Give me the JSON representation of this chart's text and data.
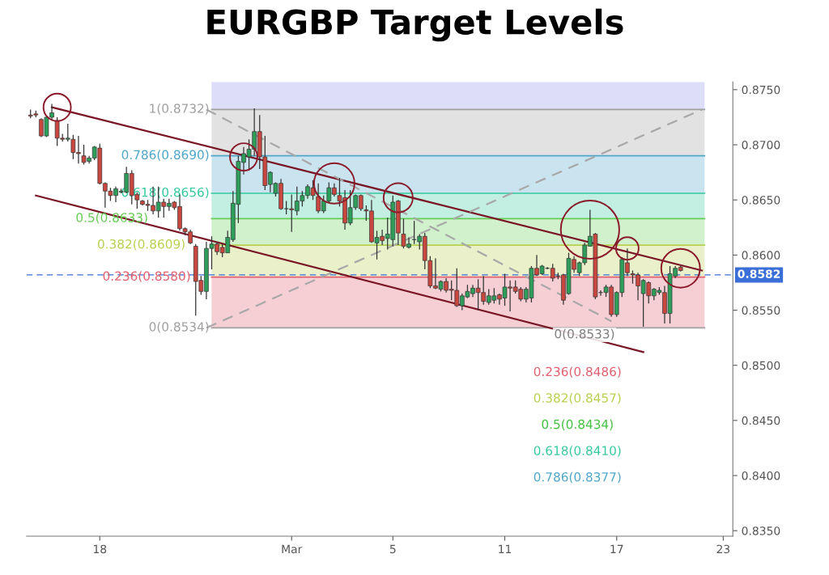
{
  "chart_data": {
    "type": "candlestick",
    "title": "EURGBP Target Levels",
    "categories": [
      null,
      null,
      null,
      null,
      null,
      null,
      null,
      null,
      null,
      null,
      null,
      null,
      null,
      "18",
      null,
      null,
      null,
      null,
      null,
      null,
      null,
      null,
      null,
      null,
      null,
      null,
      null,
      null,
      null,
      null,
      null,
      null,
      null,
      null,
      null,
      null,
      null,
      null,
      null,
      null,
      null,
      null,
      null,
      null,
      null,
      null,
      null,
      null,
      null,
      "Mar",
      null,
      null,
      null,
      null,
      null,
      null,
      null,
      null,
      null,
      null,
      null,
      null,
      null,
      null,
      null,
      null,
      null,
      null,
      "5",
      null,
      null,
      null,
      null,
      null,
      null,
      null,
      null,
      null,
      null,
      null,
      null,
      null,
      null,
      null,
      null,
      null,
      null,
      null,
      null,
      "11",
      null,
      null,
      null,
      null,
      null,
      null,
      null,
      null,
      null,
      null,
      null,
      null,
      null,
      null,
      null,
      null,
      null,
      null,
      null,
      null,
      "17",
      null,
      null,
      null,
      null,
      null,
      null,
      null,
      null,
      null,
      null,
      null,
      null,
      null,
      null,
      null,
      null,
      null,
      null,
      null,
      "23",
      null
    ],
    "ohlc": [
      [
        0.8727,
        0.8732,
        0.8724,
        0.8726
      ],
      [
        0.8728,
        0.8731,
        0.8725,
        0.8727
      ],
      [
        0.8723,
        0.8724,
        0.8707,
        0.8708
      ],
      [
        0.8708,
        0.8726,
        0.8707,
        0.8725
      ],
      [
        0.8725,
        0.8737,
        0.8722,
        0.8729
      ],
      [
        0.8722,
        0.8725,
        0.8699,
        0.8706
      ],
      [
        0.8706,
        0.871,
        0.8703,
        0.8705
      ],
      [
        0.8705,
        0.8719,
        0.8703,
        0.8706
      ],
      [
        0.8705,
        0.8709,
        0.8687,
        0.8693
      ],
      [
        0.8693,
        0.8708,
        0.8683,
        0.8692
      ],
      [
        0.869,
        0.87,
        0.8682,
        0.8684
      ],
      [
        0.8685,
        0.869,
        0.8683,
        0.8688
      ],
      [
        0.8688,
        0.8699,
        0.8686,
        0.8698
      ],
      [
        0.8697,
        0.8701,
        0.8664,
        0.8665
      ],
      [
        0.8665,
        0.8666,
        0.8643,
        0.8658
      ],
      [
        0.8658,
        0.8661,
        0.8649,
        0.8654
      ],
      [
        0.8654,
        0.8662,
        0.8648,
        0.866
      ],
      [
        0.8657,
        0.866,
        0.8656,
        0.8658
      ],
      [
        0.8657,
        0.868,
        0.8656,
        0.8674
      ],
      [
        0.8674,
        0.8677,
        0.8646,
        0.8654
      ],
      [
        0.8655,
        0.8657,
        0.8642,
        0.865
      ],
      [
        0.8649,
        0.865,
        0.8645,
        0.8646
      ],
      [
        0.8646,
        0.865,
        0.864,
        0.8645
      ],
      [
        0.8645,
        0.8662,
        0.8637,
        0.864
      ],
      [
        0.864,
        0.8662,
        0.8634,
        0.8648
      ],
      [
        0.8648,
        0.8651,
        0.8634,
        0.8644
      ],
      [
        0.8644,
        0.8651,
        0.864,
        0.8647
      ],
      [
        0.8648,
        0.8649,
        0.8641,
        0.8643
      ],
      [
        0.8644,
        0.8655,
        0.8622,
        0.8624
      ],
      [
        0.8624,
        0.8625,
        0.8618,
        0.8621
      ],
      [
        0.8621,
        0.8623,
        0.861,
        0.8611
      ],
      [
        0.8608,
        0.861,
        0.8545,
        0.8576
      ],
      [
        0.8577,
        0.8581,
        0.8564,
        0.8567
      ],
      [
        0.8567,
        0.8612,
        0.856,
        0.8606
      ],
      [
        0.8606,
        0.8617,
        0.8587,
        0.861
      ],
      [
        0.861,
        0.8612,
        0.86,
        0.8603
      ],
      [
        0.8607,
        0.861,
        0.8598,
        0.8602
      ],
      [
        0.8602,
        0.8622,
        0.8602,
        0.8616
      ],
      [
        0.8614,
        0.8658,
        0.8612,
        0.8647
      ],
      [
        0.8646,
        0.869,
        0.8629,
        0.8685
      ],
      [
        0.8684,
        0.8698,
        0.8673,
        0.8692
      ],
      [
        0.8689,
        0.8705,
        0.8677,
        0.8696
      ],
      [
        0.8696,
        0.8733,
        0.869,
        0.8712
      ],
      [
        0.8712,
        0.8727,
        0.8678,
        0.8689
      ],
      [
        0.8689,
        0.8708,
        0.8659,
        0.8663
      ],
      [
        0.8664,
        0.8676,
        0.8657,
        0.8675
      ],
      [
        0.8656,
        0.8666,
        0.8653,
        0.8665
      ],
      [
        0.8665,
        0.8669,
        0.8641,
        0.8642
      ],
      [
        0.8642,
        0.8649,
        0.8637,
        0.8642
      ],
      [
        0.8642,
        0.8655,
        0.8621,
        0.8641
      ],
      [
        0.864,
        0.8662,
        0.8636,
        0.8649
      ],
      [
        0.8649,
        0.8658,
        0.8644,
        0.8654
      ],
      [
        0.8654,
        0.8664,
        0.8651,
        0.8662
      ],
      [
        0.8661,
        0.8668,
        0.865,
        0.8654
      ],
      [
        0.8653,
        0.8665,
        0.8638,
        0.864
      ],
      [
        0.864,
        0.8654,
        0.8638,
        0.8649
      ],
      [
        0.8649,
        0.8666,
        0.8648,
        0.8661
      ],
      [
        0.8661,
        0.8665,
        0.8653,
        0.8655
      ],
      [
        0.8654,
        0.867,
        0.8644,
        0.8649
      ],
      [
        0.8652,
        0.8659,
        0.8623,
        0.8629
      ],
      [
        0.8629,
        0.8659,
        0.8627,
        0.8643
      ],
      [
        0.8643,
        0.8655,
        0.8641,
        0.8654
      ],
      [
        0.8654,
        0.8655,
        0.864,
        0.8642
      ],
      [
        0.8641,
        0.8645,
        0.8631,
        0.864
      ],
      [
        0.864,
        0.865,
        0.8611,
        0.8612
      ],
      [
        0.8611,
        0.8622,
        0.8596,
        0.8616
      ],
      [
        0.8617,
        0.8623,
        0.8609,
        0.8613
      ],
      [
        0.8615,
        0.8634,
        0.8605,
        0.8619
      ],
      [
        0.8614,
        0.8654,
        0.8608,
        0.8648
      ],
      [
        0.8649,
        0.865,
        0.8609,
        0.862
      ],
      [
        0.8619,
        0.8633,
        0.8606,
        0.8608
      ],
      [
        0.8607,
        0.8616,
        0.8606,
        0.861
      ],
      [
        0.8614,
        0.8631,
        0.861,
        0.8614
      ],
      [
        0.8612,
        0.8619,
        0.8605,
        0.8617
      ],
      [
        0.8617,
        0.862,
        0.8587,
        0.8595
      ],
      [
        0.8595,
        0.8599,
        0.857,
        0.8572
      ],
      [
        0.8572,
        0.8597,
        0.8569,
        0.857
      ],
      [
        0.8569,
        0.8577,
        0.8567,
        0.8576
      ],
      [
        0.8576,
        0.8579,
        0.8566,
        0.8568
      ],
      [
        0.8569,
        0.8577,
        0.8559,
        0.8568
      ],
      [
        0.8568,
        0.8588,
        0.8553,
        0.8554
      ],
      [
        0.8554,
        0.8565,
        0.855,
        0.8563
      ],
      [
        0.8562,
        0.8573,
        0.8561,
        0.8567
      ],
      [
        0.8565,
        0.8573,
        0.8562,
        0.857
      ],
      [
        0.857,
        0.8578,
        0.855,
        0.8566
      ],
      [
        0.8566,
        0.8581,
        0.8555,
        0.8558
      ],
      [
        0.8557,
        0.8569,
        0.8555,
        0.8563
      ],
      [
        0.8559,
        0.857,
        0.8556,
        0.8563
      ],
      [
        0.8564,
        0.8565,
        0.8555,
        0.856
      ],
      [
        0.8561,
        0.8583,
        0.8554,
        0.8571
      ],
      [
        0.8571,
        0.8577,
        0.8549,
        0.857
      ],
      [
        0.8571,
        0.8577,
        0.8565,
        0.8567
      ],
      [
        0.8569,
        0.8571,
        0.8558,
        0.856
      ],
      [
        0.856,
        0.8571,
        0.8557,
        0.8569
      ],
      [
        0.8561,
        0.859,
        0.8557,
        0.8588
      ],
      [
        0.8588,
        0.86,
        0.8581,
        0.8582
      ],
      [
        0.8583,
        0.8591,
        0.8582,
        0.859
      ],
      [
        0.8588,
        0.8589,
        0.8587,
        0.8588
      ],
      [
        0.8588,
        0.8592,
        0.8576,
        0.8579
      ],
      [
        0.8581,
        0.8584,
        0.8578,
        0.8581
      ],
      [
        0.8582,
        0.8583,
        0.8555,
        0.8559
      ],
      [
        0.8565,
        0.8602,
        0.8564,
        0.8597
      ],
      [
        0.8596,
        0.8599,
        0.8584,
        0.8587
      ],
      [
        0.8584,
        0.8594,
        0.8581,
        0.8593
      ],
      [
        0.8593,
        0.8611,
        0.8591,
        0.8609
      ],
      [
        0.8608,
        0.8641,
        0.8608,
        0.8617
      ],
      [
        0.8619,
        0.862,
        0.856,
        0.8562
      ],
      [
        0.8566,
        0.8568,
        0.8563,
        0.8566
      ],
      [
        0.8566,
        0.8573,
        0.8562,
        0.8571
      ],
      [
        0.8571,
        0.8573,
        0.8544,
        0.8546
      ],
      [
        0.8546,
        0.8567,
        0.8544,
        0.8566
      ],
      [
        0.8566,
        0.8598,
        0.8562,
        0.8596
      ],
      [
        0.8593,
        0.8606,
        0.8581,
        0.8584
      ],
      [
        0.8583,
        0.8586,
        0.8574,
        0.8582
      ],
      [
        0.8582,
        0.8584,
        0.8559,
        0.8572
      ],
      [
        0.8565,
        0.8578,
        0.8535,
        0.8577
      ],
      [
        0.8575,
        0.8576,
        0.8556,
        0.8563
      ],
      [
        0.8563,
        0.857,
        0.8559,
        0.8569
      ],
      [
        0.8566,
        0.8571,
        0.8564,
        0.8568
      ],
      [
        0.8566,
        0.8572,
        0.8538,
        0.8547
      ],
      [
        0.8547,
        0.859,
        0.8538,
        0.8583
      ],
      [
        0.8581,
        0.859,
        0.8579,
        0.8588
      ],
      [
        0.8589,
        0.859,
        0.8585,
        0.8586
      ],
      null,
      null,
      null,
      null,
      null,
      null,
      null,
      null,
      null
    ],
    "series": [
      {
        "type": "line",
        "color": "#7a1526",
        "values": [
          null,
          null,
          null,
          null,
          0.8734,
          null,
          null,
          null,
          null,
          null,
          null,
          null,
          null,
          null,
          null,
          null,
          null,
          null,
          null,
          null,
          null,
          null,
          null,
          null,
          null,
          null,
          null,
          null,
          null,
          null,
          null,
          null,
          null,
          null,
          null,
          null,
          null,
          null,
          null,
          null,
          null,
          null,
          null,
          null,
          null,
          null,
          null,
          null,
          null,
          null,
          null,
          null,
          null,
          null,
          null,
          null,
          null,
          null,
          null,
          null,
          null,
          null,
          null,
          null,
          null,
          null,
          null,
          null,
          null,
          null,
          null,
          null,
          null,
          null,
          null,
          null,
          null,
          null,
          null,
          null,
          null,
          null,
          null,
          null,
          null,
          null,
          null,
          null,
          null,
          null,
          null,
          null,
          null,
          null,
          null,
          null,
          null,
          null,
          null,
          null,
          null,
          null,
          null,
          null,
          null,
          null,
          null,
          null,
          null,
          null,
          null,
          null,
          null,
          null,
          null,
          null,
          null,
          null,
          null,
          null,
          null,
          null,
          null,
          null,
          null,
          null,
          0.8586,
          null,
          null,
          null,
          null,
          null
        ]
      },
      {
        "type": "line",
        "color": "#7a1526",
        "values": [
          null,
          0.8654,
          null,
          null,
          null,
          null,
          null,
          null,
          null,
          null,
          null,
          null,
          null,
          null,
          null,
          null,
          null,
          null,
          null,
          null,
          null,
          null,
          null,
          null,
          null,
          null,
          null,
          null,
          null,
          null,
          null,
          null,
          null,
          null,
          null,
          null,
          null,
          null,
          null,
          null,
          null,
          null,
          null,
          null,
          null,
          null,
          null,
          null,
          null,
          null,
          null,
          null,
          null,
          null,
          null,
          null,
          null,
          null,
          null,
          null,
          null,
          null,
          null,
          null,
          null,
          null,
          null,
          null,
          null,
          null,
          null,
          null,
          null,
          null,
          null,
          null,
          null,
          null,
          null,
          null,
          null,
          null,
          null,
          null,
          null,
          null,
          null,
          null,
          null,
          null,
          null,
          null,
          null,
          null,
          null,
          null,
          null,
          null,
          null,
          null,
          null,
          null,
          null,
          null,
          null,
          null,
          null,
          null,
          null,
          null,
          null,
          null,
          null,
          null,
          null,
          0.8512,
          null,
          null,
          null,
          null,
          null,
          null,
          null,
          null,
          null,
          null,
          null,
          null,
          null,
          null,
          null,
          null
        ]
      },
      {
        "type": "line",
        "color": "#a8a8a8",
        "line_style": "dashed",
        "values": [
          null,
          null,
          null,
          null,
          null,
          null,
          null,
          null,
          null,
          null,
          null,
          null,
          null,
          null,
          null,
          null,
          null,
          null,
          null,
          null,
          null,
          null,
          null,
          null,
          null,
          null,
          null,
          null,
          null,
          null,
          null,
          null,
          null,
          0.8534,
          null,
          null,
          null,
          null,
          null,
          null,
          null,
          null,
          null,
          null,
          null,
          null,
          null,
          null,
          null,
          null,
          null,
          null,
          null,
          null,
          null,
          null,
          null,
          null,
          null,
          null,
          null,
          null,
          null,
          null,
          null,
          null,
          null,
          null,
          null,
          null,
          null,
          null,
          null,
          null,
          null,
          null,
          null,
          null,
          null,
          null,
          null,
          null,
          null,
          null,
          null,
          null,
          null,
          null,
          null,
          null,
          null,
          null,
          null,
          null,
          null,
          null,
          null,
          null,
          null,
          null,
          null,
          null,
          null,
          null,
          null,
          null,
          null,
          null,
          null,
          null,
          null,
          null,
          null,
          null,
          null,
          null,
          null,
          null,
          null,
          null,
          null,
          null,
          null,
          null,
          null,
          null,
          0.8732,
          null,
          null,
          null,
          null,
          null
        ]
      },
      {
        "type": "line",
        "color": "#a8a8a8",
        "line_style": "dashed",
        "values": [
          null,
          null,
          null,
          null,
          null,
          null,
          null,
          null,
          null,
          null,
          null,
          null,
          null,
          null,
          null,
          null,
          null,
          null,
          null,
          null,
          null,
          null,
          null,
          null,
          null,
          null,
          null,
          null,
          null,
          null,
          null,
          null,
          null,
          0.8732,
          null,
          null,
          null,
          null,
          null,
          null,
          null,
          null,
          null,
          null,
          null,
          null,
          null,
          null,
          null,
          null,
          null,
          null,
          null,
          null,
          null,
          null,
          null,
          null,
          null,
          null,
          null,
          null,
          null,
          null,
          null,
          null,
          null,
          null,
          null,
          null,
          null,
          null,
          null,
          null,
          null,
          null,
          null,
          null,
          null,
          null,
          null,
          null,
          null,
          null,
          null,
          null,
          null,
          null,
          null,
          null,
          null,
          null,
          null,
          null,
          null,
          null,
          null,
          null,
          null,
          null,
          null,
          null,
          null,
          null,
          null,
          null,
          null,
          null,
          null,
          0.854,
          null,
          null,
          null,
          null,
          null,
          null,
          null,
          null,
          null,
          null,
          null,
          null,
          null,
          null,
          null,
          null,
          null,
          null,
          null,
          null,
          null,
          null
        ]
      },
      {
        "type": "bubble",
        "color": "#8b1a2b",
        "values": [
          null,
          null,
          null,
          null,
          null,
          0.8734,
          null,
          null,
          null,
          null,
          null,
          null,
          null,
          null,
          null,
          null,
          null,
          null,
          null,
          null,
          null,
          null,
          null,
          null,
          null,
          null,
          null,
          null,
          null,
          null,
          null,
          null,
          null,
          null,
          null,
          null,
          null,
          null,
          null,
          null,
          0.8689,
          null,
          null,
          null,
          null,
          null,
          null,
          null,
          null,
          null,
          null,
          null,
          null,
          null,
          null,
          null,
          null,
          0.8665,
          null,
          null,
          null,
          null,
          null,
          null,
          null,
          null,
          null,
          null,
          null,
          0.8652,
          null,
          null,
          null,
          null,
          null,
          null,
          null,
          null,
          null,
          null,
          null,
          null,
          null,
          null,
          null,
          null,
          null,
          null,
          null,
          null,
          null,
          null,
          null,
          null,
          null,
          null,
          null,
          null,
          null,
          null,
          null,
          null,
          null,
          null,
          null,
          0.8623,
          null,
          null,
          null,
          null,
          null,
          null,
          0.8606,
          null,
          null,
          null,
          null,
          null,
          null,
          null,
          null,
          null,
          0.8588,
          null,
          null,
          null,
          null,
          null,
          null,
          null,
          null,
          null
        ],
        "sizes": [
          null,
          null,
          null,
          null,
          null,
          0.22,
          null,
          null,
          null,
          null,
          null,
          null,
          null,
          null,
          null,
          null,
          null,
          null,
          null,
          null,
          null,
          null,
          null,
          null,
          null,
          null,
          null,
          null,
          null,
          null,
          null,
          null,
          null,
          null,
          null,
          null,
          null,
          null,
          null,
          null,
          0.22,
          null,
          null,
          null,
          null,
          null,
          null,
          null,
          null,
          null,
          null,
          null,
          null,
          null,
          null,
          null,
          null,
          0.48,
          null,
          null,
          null,
          null,
          null,
          null,
          null,
          null,
          null,
          null,
          null,
          0.25,
          null,
          null,
          null,
          null,
          null,
          null,
          null,
          null,
          null,
          null,
          null,
          null,
          null,
          null,
          null,
          null,
          null,
          null,
          null,
          null,
          null,
          null,
          null,
          null,
          null,
          null,
          null,
          null,
          null,
          null,
          null,
          null,
          null,
          null,
          null,
          1,
          null,
          null,
          null,
          null,
          null,
          null,
          0.15,
          null,
          null,
          null,
          null,
          null,
          null,
          null,
          null,
          null,
          0.44,
          null,
          null,
          null,
          null,
          null,
          null,
          null,
          null,
          null
        ]
      }
    ],
    "bands": [
      {
        "axis": "y",
        "from": 0.8732,
        "to": 0.8757,
        "color": "#8f8fe8"
      },
      {
        "axis": "y",
        "from": 0.869,
        "to": 0.8732,
        "label": "1(0.8732)",
        "color": "#a0a0a0"
      },
      {
        "axis": "y",
        "from": 0.8656,
        "to": 0.869,
        "label": "0.786(0.8690)",
        "color": "#4ea6c9"
      },
      {
        "axis": "y",
        "from": 0.8633,
        "to": 0.8656,
        "label": "0.618(0.8656)",
        "color": "#35c9a0"
      },
      {
        "axis": "y",
        "from": 0.8609,
        "to": 0.8633,
        "label": "0.5(0.8633)",
        "color": "#66cc55"
      },
      {
        "axis": "y",
        "from": 0.858,
        "to": 0.8609,
        "label": "0.382(0.8609)",
        "color": "#b8d050"
      },
      {
        "axis": "y",
        "from": 0.8534,
        "to": 0.858,
        "label": "0.236(0.8580)",
        "color": "#e06070"
      }
    ],
    "ref_lines": [
      {
        "axis": "y",
        "value": 0.8732,
        "color": "#a0a0a0"
      },
      {
        "axis": "y",
        "value": 0.869,
        "color": "#4ea6c9"
      },
      {
        "axis": "y",
        "value": 0.8656,
        "color": "#35c9a0"
      },
      {
        "axis": "y",
        "value": 0.8633,
        "color": "#66cc55"
      },
      {
        "axis": "y",
        "value": 0.8609,
        "color": "#b8d050"
      },
      {
        "axis": "y",
        "value": 0.858,
        "color": "#e06070"
      },
      {
        "axis": "y",
        "value": 0.8534,
        "label": "0(0.8534)",
        "color": "#a0a0a0"
      },
      {
        "axis": "y",
        "value": 0.8582,
        "label": "0.8582",
        "color": "#3a6fd8",
        "line_style": "dashed"
      }
    ],
    "annotations": [
      {
        "text": "0(0.8533)",
        "y": 0.8533
      },
      "0.236(0.8486)",
      "0.382(0.8457)",
      "0.5(0.8434)",
      "0.618(0.8410)",
      "0.786(0.8377)"
    ],
    "ylim": [
      0.8345,
      0.8757
    ],
    "yticks": [
      {
        "value": 0.835,
        "label": "0.8350"
      },
      {
        "value": 0.84,
        "label": "0.8400"
      },
      {
        "value": 0.845,
        "label": "0.8450"
      },
      {
        "value": 0.85,
        "label": "0.8500"
      },
      {
        "value": 0.855,
        "label": "0.8550"
      },
      {
        "value": 0.86,
        "label": "0.8600"
      },
      {
        "value": 0.865,
        "label": "0.8650"
      },
      {
        "value": 0.87,
        "label": "0.8700"
      },
      {
        "value": 0.875,
        "label": "0.8750"
      }
    ]
  }
}
